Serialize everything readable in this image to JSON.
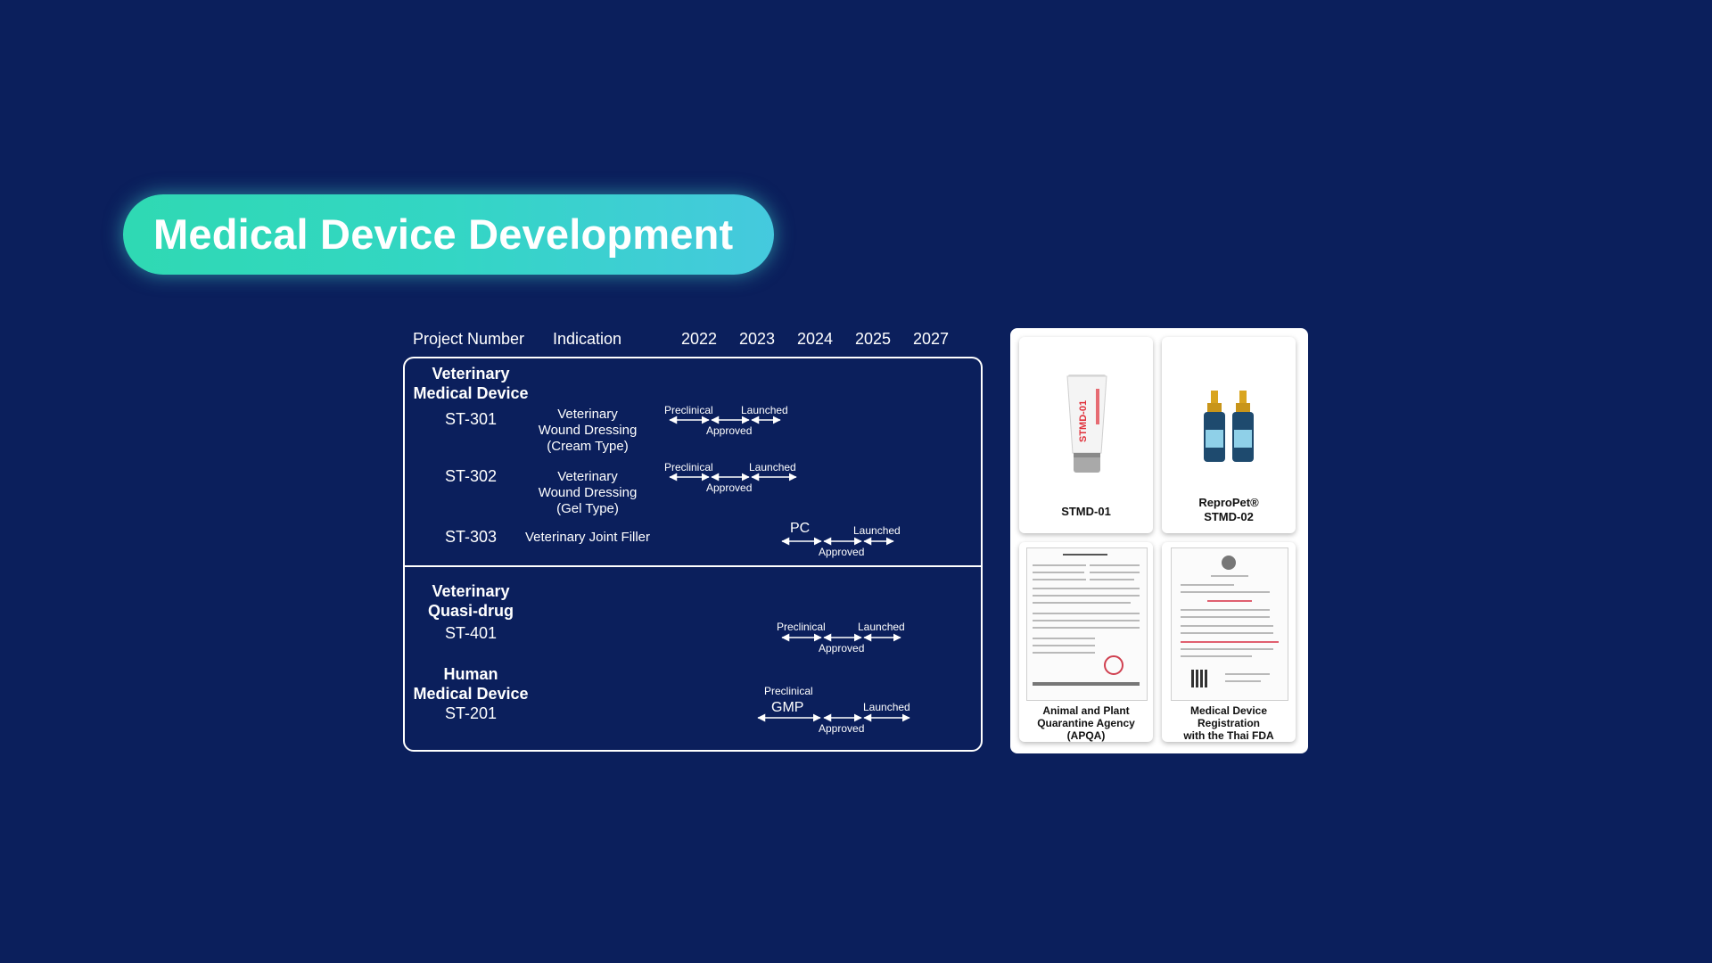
{
  "title": "Medical Device Development",
  "headers": {
    "project_number": "Project Number",
    "indication": "Indication",
    "years": [
      "2022",
      "2023",
      "2024",
      "2025",
      "2027"
    ]
  },
  "sections": {
    "vet_device": "Veterinary\nMedical Device",
    "vet_quasi": "Veterinary\nQuasi-drug",
    "human_device": "Human\nMedical Device"
  },
  "projects": {
    "st301": {
      "id": "ST-301",
      "indication": "Veterinary\nWound Dressing\n(Cream Type)",
      "preclinical": "Preclinical",
      "approved": "Approved",
      "launched": "Launched"
    },
    "st302": {
      "id": "ST-302",
      "indication": "Veterinary\nWound Dressing\n(Gel Type)",
      "preclinical": "Preclinical",
      "approved": "Approved",
      "launched": "Launched"
    },
    "st303": {
      "id": "ST-303",
      "indication": "Veterinary Joint Filler",
      "pc": "PC",
      "approved": "Approved",
      "launched": "Launched"
    },
    "st401": {
      "id": "ST-401",
      "preclinical": "Preclinical",
      "approved": "Approved",
      "launched": "Launched"
    },
    "st201": {
      "id": "ST-201",
      "preclinical": "Preclinical",
      "gmp": "GMP",
      "approved": "Approved",
      "launched": "Launched"
    }
  },
  "products": {
    "p1": "STMD-01",
    "p2": "ReproPet®\nSTMD-02",
    "doc1": "Animal and Plant\nQuarantine Agency (APQA)",
    "doc2": "Medical Device Registration\nwith the Thai FDA",
    "tube_text": "STMD-01"
  },
  "colors": {
    "background": "#0b1f5c",
    "pill_start": "#2fd9b3",
    "pill_end": "#45c9de",
    "tube_red": "#e0303a"
  }
}
